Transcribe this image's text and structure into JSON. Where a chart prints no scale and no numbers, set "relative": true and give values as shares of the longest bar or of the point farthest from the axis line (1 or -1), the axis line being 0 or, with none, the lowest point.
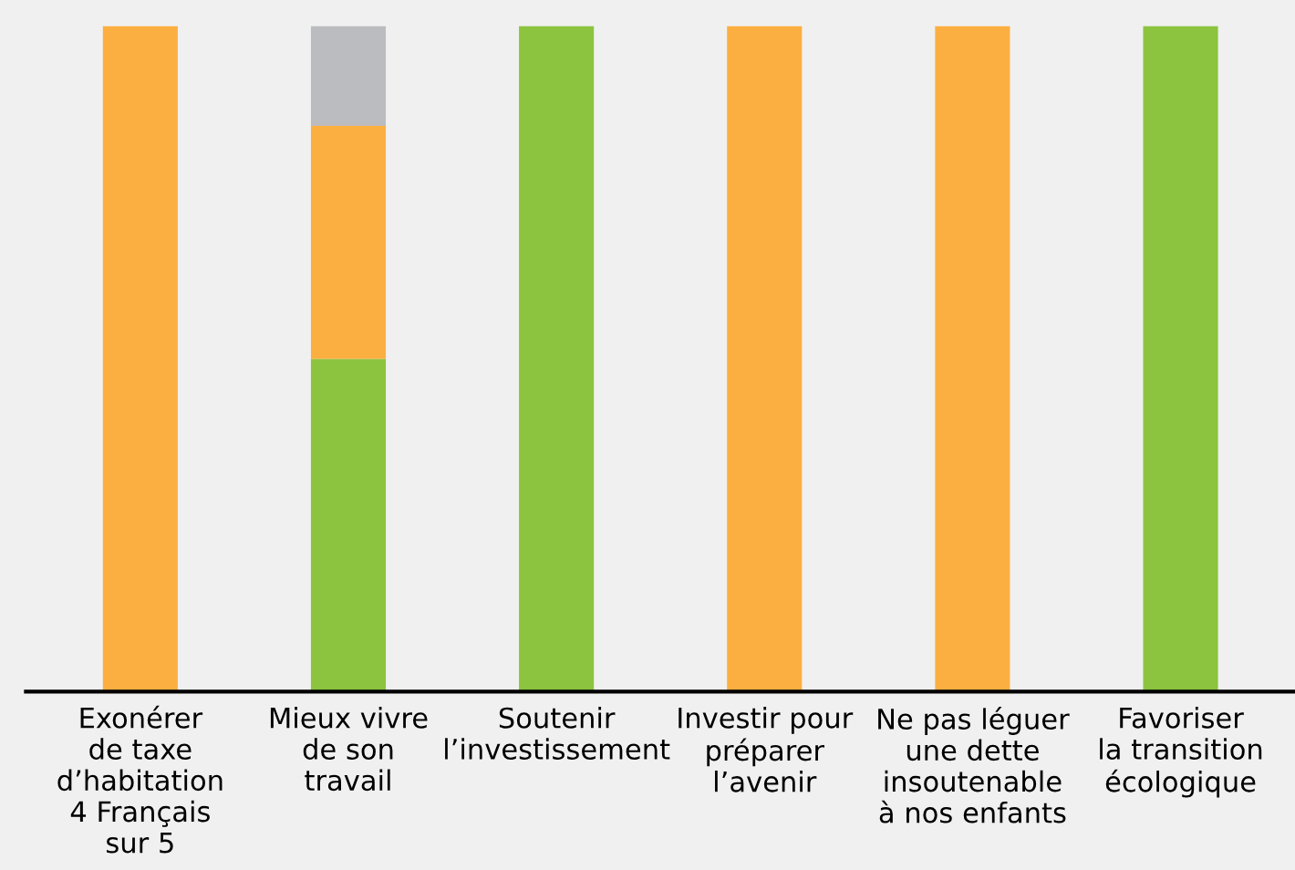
{
  "chart_data": {
    "type": "bar",
    "relative": true,
    "stacked": true,
    "categories": [
      "Exonérer\nde taxe\nd’habitation\n4 Français\nsur 5",
      "Mieux vivre\nde son\ntravail",
      "Soutenir\nl’investissement",
      "Investir pour\npréparer\nl’avenir",
      "Ne pas léguer\nune dette\ninsoutenable\nà nos enfants",
      "Favoriser\nla transition\nécologique"
    ],
    "series": [
      {
        "color": "#8cc43f",
        "values": [
          null,
          0.5,
          1,
          null,
          null,
          1
        ]
      },
      {
        "color": "#fcaf41",
        "values": [
          1,
          0.35,
          null,
          1,
          1,
          null
        ]
      },
      {
        "color": "#bbbcbf",
        "values": [
          null,
          0.15,
          null,
          null,
          null,
          null
        ]
      }
    ]
  }
}
